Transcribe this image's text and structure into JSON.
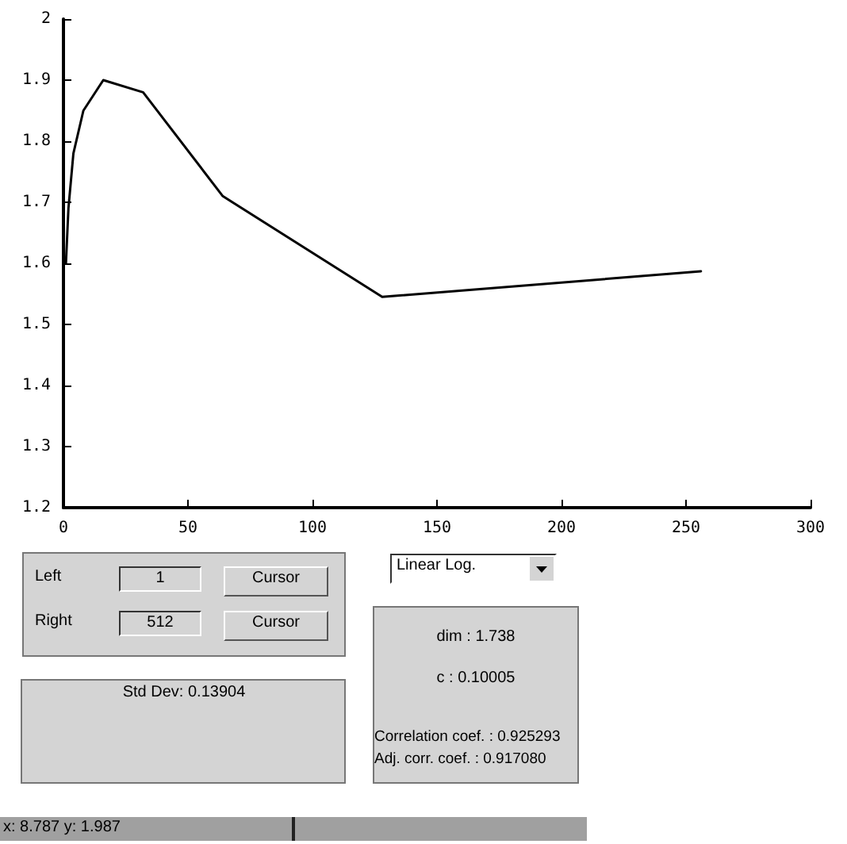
{
  "chart_data": {
    "type": "line",
    "x": [
      1,
      2,
      4,
      8,
      16,
      32,
      64,
      128,
      256
    ],
    "series": [
      {
        "color": "#000000",
        "values": [
          1.6,
          1.69,
          1.78,
          1.85,
          1.9,
          1.88,
          1.71,
          1.545,
          1.587
        ]
      }
    ],
    "xlim": [
      0,
      300
    ],
    "xticks": [
      0,
      50,
      100,
      150,
      200,
      250,
      300
    ],
    "ylim": [
      1.2,
      2
    ],
    "yticks": [
      1.2,
      1.3,
      1.4,
      1.5,
      1.6,
      1.7,
      1.8,
      1.9,
      2
    ],
    "grid": false,
    "marker": "none",
    "line_style": "solid",
    "annotations": [
      "Left",
      "1",
      "Cursor",
      "Right",
      "512",
      "Cursor",
      "Std Dev: 0.13904",
      "Linear Log.",
      "dim : 1.738",
      "c : 0.10005",
      "Correlation coef. : 0.925293",
      "Adj. corr. coef. : 0.917080",
      "x: 8.787 y: 1.987"
    ]
  }
}
